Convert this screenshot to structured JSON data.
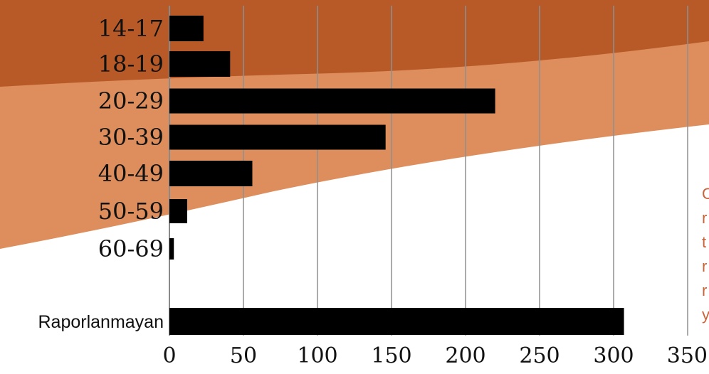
{
  "chart_data": {
    "type": "bar",
    "orientation": "horizontal",
    "categories": [
      "14-17",
      "18-19",
      "20-29",
      "30-39",
      "40-49",
      "50-59",
      "60-69",
      "Raporlanmayan"
    ],
    "values": [
      23,
      41,
      220,
      146,
      56,
      12,
      3,
      307
    ],
    "title": "",
    "xlabel": "",
    "ylabel": "",
    "xlim": [
      0,
      350
    ],
    "xticks": [
      0,
      50,
      100,
      150,
      200,
      250,
      300,
      350
    ],
    "grid": "vertical",
    "bar_color": "#000000",
    "background_colors": [
      "#b85a28",
      "#dd8e5c",
      "#ffffff"
    ]
  },
  "side_text": {
    "letters": [
      "C",
      "r",
      "t",
      "r",
      "r",
      "y"
    ],
    "color": "#c8643a"
  }
}
